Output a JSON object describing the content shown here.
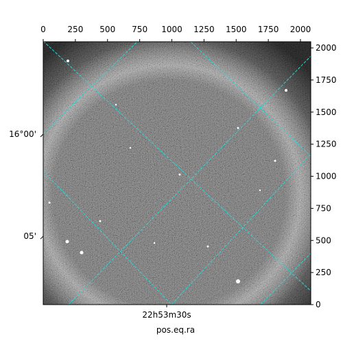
{
  "chart_data": {
    "type": "image",
    "xlabel": "pos.eq.ra",
    "xlim": [
      0,
      2080
    ],
    "ylim": [
      0,
      2048
    ],
    "xticks": [
      0,
      250,
      500,
      750,
      1000,
      1250,
      1500,
      1750,
      2000
    ],
    "yticks": [
      0,
      250,
      500,
      750,
      1000,
      1250,
      1500,
      1750,
      2000
    ],
    "ra_ticks": [
      {
        "value": 960,
        "label": "22h53m30s"
      }
    ],
    "dec_ticks": [
      {
        "value": 1328,
        "label": "16°00'"
      },
      {
        "value": 533,
        "label": "05'"
      }
    ]
  }
}
